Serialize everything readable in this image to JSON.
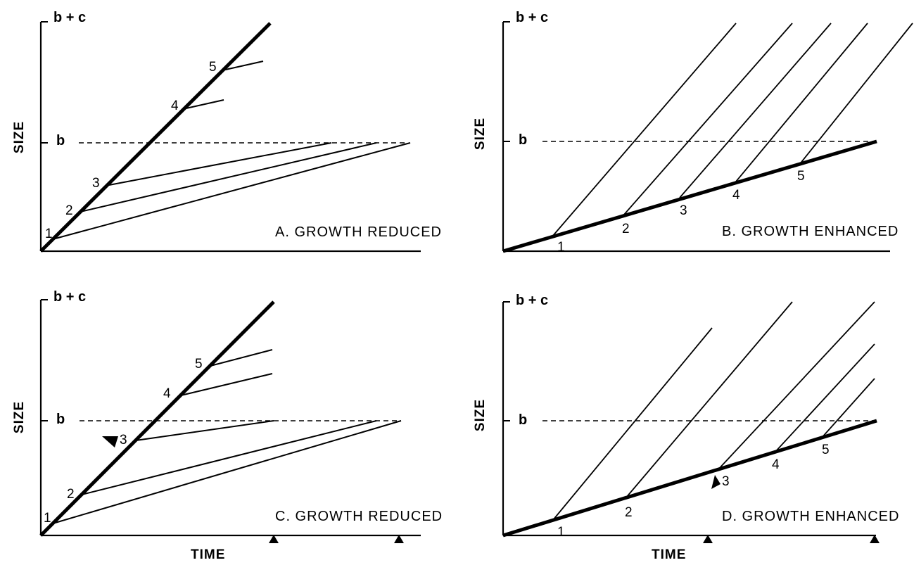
{
  "figure": {
    "axis_label_x": "TIME",
    "axis_label_y": "SIZE",
    "level_b_label": "b",
    "level_bc_label": "b + c",
    "panels": [
      {
        "id": "A",
        "title": "A. GROWTH REDUCED",
        "primary_labels": [
          "1",
          "2",
          "3",
          "4",
          "5"
        ]
      },
      {
        "id": "B",
        "title": "B. GROWTH ENHANCED",
        "primary_labels": [
          "1",
          "2",
          "3",
          "4",
          "5"
        ]
      },
      {
        "id": "C",
        "title": "C. GROWTH REDUCED",
        "primary_labels": [
          "1",
          "2",
          "3",
          "4",
          "5"
        ],
        "marked_point": "3"
      },
      {
        "id": "D",
        "title": "D. GROWTH ENHANCED",
        "primary_labels": [
          "1",
          "2",
          "3",
          "4",
          "5"
        ],
        "marked_point": "3"
      }
    ]
  }
}
